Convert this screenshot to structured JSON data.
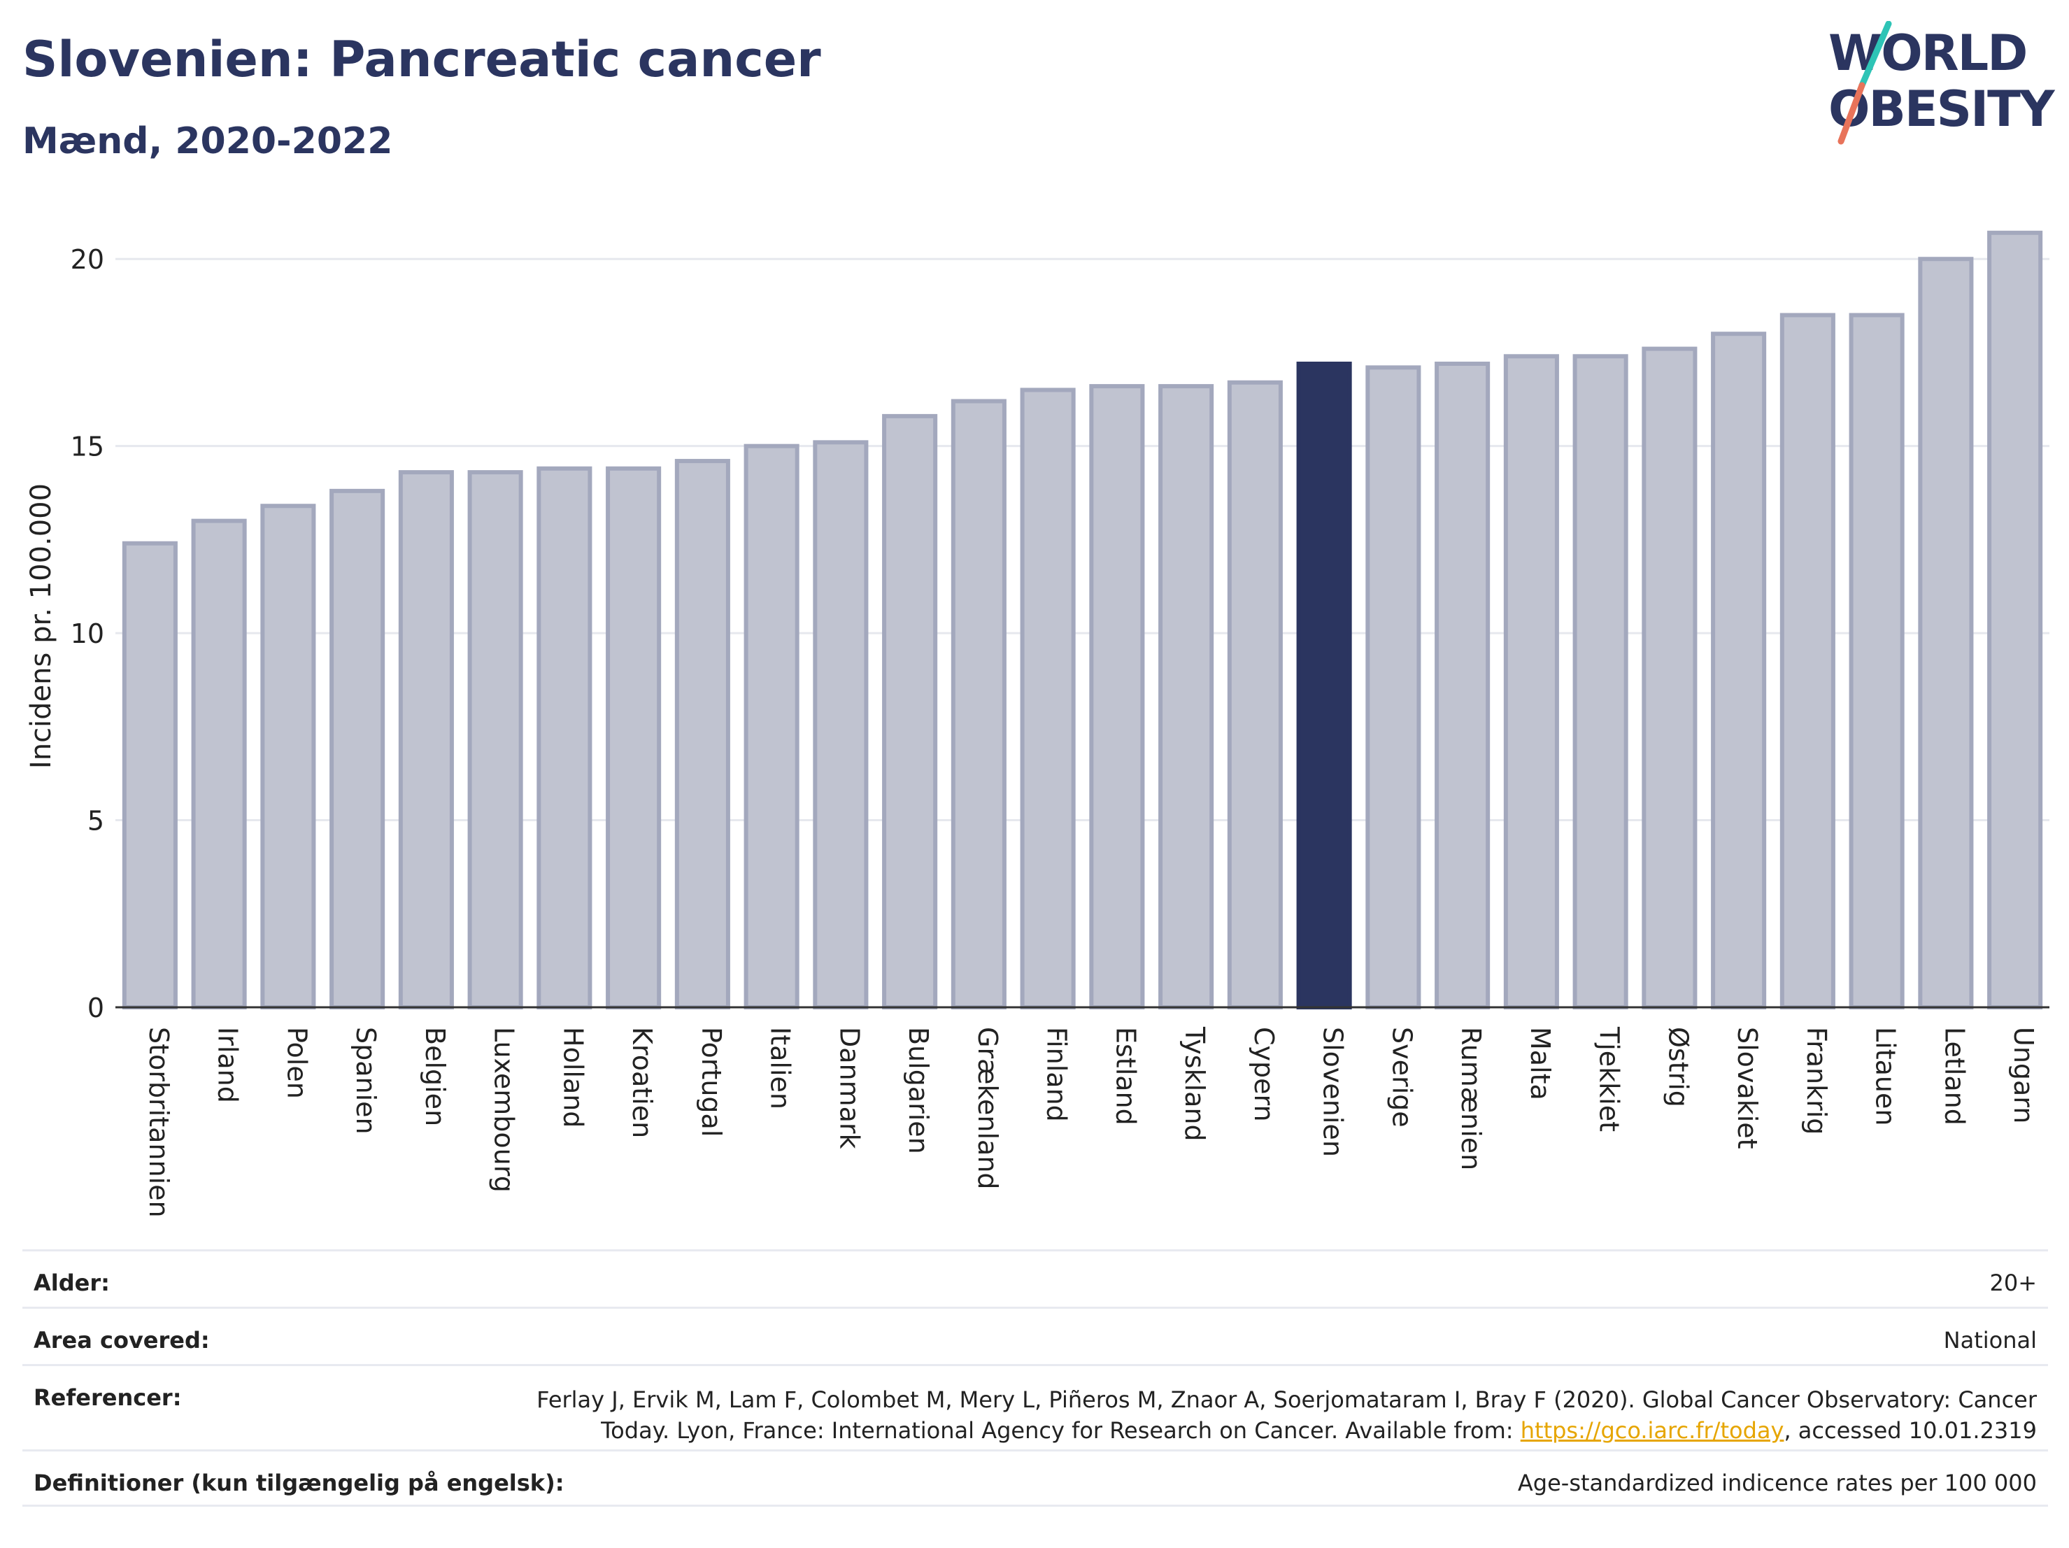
{
  "header": {
    "title": "Slovenien: Pancreatic cancer",
    "subtitle": "Mænd, 2020-2022"
  },
  "logo": {
    "line1": "WORLD",
    "line2": "OBESITY",
    "colors": {
      "text": "#2b3560",
      "slash_top": "#2ec4b6",
      "slash_bottom": "#e8735a"
    }
  },
  "chart_data": {
    "type": "bar",
    "title": "",
    "xlabel": "",
    "ylabel": "Incidens pr. 100.000",
    "ylim": [
      0,
      21.5
    ],
    "yticks": [
      0,
      5,
      10,
      15,
      20
    ],
    "grid": true,
    "highlight": "Slovenien",
    "colors": {
      "bar": "#c0c3d0",
      "bar_border": "#a3a8bd",
      "highlight": "#2b3560"
    },
    "categories": [
      "Storbritannien",
      "Irland",
      "Polen",
      "Spanien",
      "Belgien",
      "Luxembourg",
      "Holland",
      "Kroatien",
      "Portugal",
      "Italien",
      "Danmark",
      "Bulgarien",
      "Grækenland",
      "Finland",
      "Estland",
      "Tyskland",
      "Cypern",
      "Slovenien",
      "Sverige",
      "Rumænien",
      "Malta",
      "Tjekkiet",
      "Østrig",
      "Slovakiet",
      "Frankrig",
      "Litauen",
      "Letland",
      "Ungarn"
    ],
    "values": [
      12.4,
      13.0,
      13.4,
      13.8,
      14.3,
      14.3,
      14.4,
      14.4,
      14.6,
      15.0,
      15.1,
      15.8,
      16.2,
      16.5,
      16.6,
      16.6,
      16.7,
      17.2,
      17.1,
      17.2,
      17.4,
      17.4,
      17.6,
      18.0,
      18.5,
      18.5,
      20.0,
      20.7
    ]
  },
  "info": {
    "age_label": "Alder:",
    "age_value": "20+",
    "area_label": "Area covered:",
    "area_value": "National",
    "ref_label": "Referencer:",
    "ref_text1": "Ferlay J, Ervik M, Lam F, Colombet M, Mery L, Piñeros M, Znaor A, Soerjomataram I, Bray F (2020). Global Cancer Observatory: Cancer",
    "ref_text2": "Today. Lyon, France: International Agency for Research on Cancer. Available from: ",
    "ref_link": "https://gco.iarc.fr/today",
    "ref_text3": ", accessed 10.01.2319",
    "def_label": "Definitioner (kun tilgængelig på engelsk):",
    "def_value": "Age-standardized indicence rates per 100 000"
  }
}
